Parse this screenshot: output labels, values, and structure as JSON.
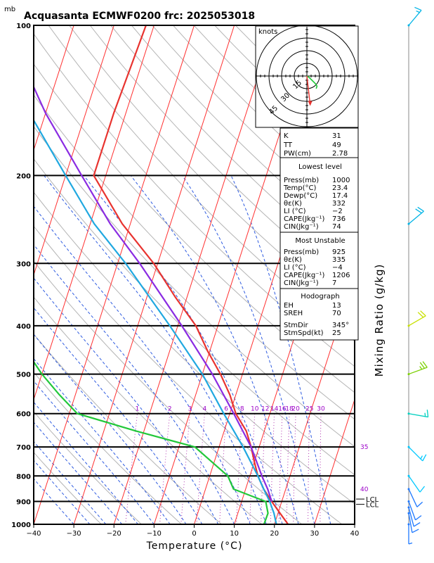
{
  "title": "Acquasanta ECMWF0200 frc: 2025053018",
  "y_unit": "mb",
  "x_label": "Temperature (°C)",
  "right_label": "Mixing Ratio (g/kg)",
  "hodograph": {
    "unit_label": "knots",
    "rings": [
      "15",
      "30",
      "45"
    ]
  },
  "indices": [
    {
      "label": "K",
      "value": "31"
    },
    {
      "label": "TT",
      "value": "49"
    },
    {
      "label": "PW(cm)",
      "value": "2.78"
    }
  ],
  "lowest_level": {
    "header": "Lowest level",
    "rows": [
      {
        "label": "Press(mb)",
        "value": "1000"
      },
      {
        "label": "Temp(°C)",
        "value": "23.4"
      },
      {
        "label": "Dewp(°C)",
        "value": "17.4"
      },
      {
        "label": "θε(K)",
        "value": "332"
      },
      {
        "label": "LI (°C)",
        "value": "−2"
      },
      {
        "label": "CAPE(Jkg⁻¹)",
        "value": "736"
      },
      {
        "label": "CIN(Jkg⁻¹)",
        "value": "74"
      }
    ]
  },
  "most_unstable": {
    "header": "Most Unstable",
    "rows": [
      {
        "label": "Press(mb)",
        "value": "925"
      },
      {
        "label": "θε(K)",
        "value": "335"
      },
      {
        "label": "LI (°C)",
        "value": "−4"
      },
      {
        "label": "CAPE(Jkg⁻¹)",
        "value": "1206"
      },
      {
        "label": "CIN(Jkg⁻¹)",
        "value": "7"
      }
    ]
  },
  "hodo_stats": {
    "header": "Hodograph",
    "rows": [
      {
        "label": "EH",
        "value": "13"
      },
      {
        "label": "SREH",
        "value": "70"
      },
      {
        "label": "StmDir",
        "value": "345°"
      },
      {
        "label": "StmSpd(kt)",
        "value": "25"
      }
    ]
  },
  "chart_data": {
    "type": "line",
    "subtype": "skew-T log-P diagram",
    "x_axis": {
      "label": "Temperature (°C)",
      "range": [
        -40,
        40
      ],
      "ticks": [
        -40,
        -30,
        -20,
        -10,
        0,
        10,
        20,
        30,
        40
      ]
    },
    "y_axis": {
      "label": "mb",
      "scale": "log",
      "range": [
        1000,
        100
      ],
      "ticks": [
        1000,
        900,
        800,
        700,
        600,
        500,
        400,
        300,
        200,
        100
      ]
    },
    "mixing_ratio_labels": [
      "1",
      "2",
      "3",
      "4",
      "6",
      "8",
      "10",
      "12",
      "14",
      "16",
      "18",
      "20",
      "25",
      "30"
    ],
    "isotherm_labels": [
      {
        "text": "35",
        "p": 700
      },
      {
        "text": "40",
        "p": 850
      }
    ],
    "lcl_labels": [
      {
        "text": "LCL",
        "p": 890
      },
      {
        "text": "LCL",
        "p": 912
      }
    ],
    "series": [
      {
        "key": "temperature",
        "color": "#e8332f",
        "points": [
          [
            1000,
            23.4
          ],
          [
            950,
            20.5
          ],
          [
            900,
            17.5
          ],
          [
            850,
            14.5
          ],
          [
            800,
            12
          ],
          [
            750,
            10
          ],
          [
            700,
            8
          ],
          [
            650,
            5.5
          ],
          [
            600,
            1.5
          ],
          [
            550,
            -1.5
          ],
          [
            500,
            -5.5
          ],
          [
            450,
            -10.5
          ],
          [
            400,
            -15.5
          ],
          [
            350,
            -23
          ],
          [
            300,
            -31
          ],
          [
            250,
            -42
          ],
          [
            200,
            -53
          ],
          [
            150,
            -53
          ],
          [
            100,
            -52
          ]
        ]
      },
      {
        "key": "dewpoint",
        "color": "#22c83a",
        "points": [
          [
            1000,
            17.4
          ],
          [
            950,
            17.5
          ],
          [
            900,
            16
          ],
          [
            850,
            7
          ],
          [
            800,
            4.5
          ],
          [
            700,
            -6
          ],
          [
            650,
            -22
          ],
          [
            600,
            -38
          ],
          [
            550,
            -44
          ],
          [
            500,
            -50
          ],
          [
            400,
            -62
          ],
          [
            300,
            -70
          ],
          [
            200,
            -77
          ],
          [
            100,
            -85
          ]
        ]
      },
      {
        "key": "parcel-most-unstable",
        "color": "#20a8e0",
        "points": [
          [
            1000,
            20.5
          ],
          [
            950,
            19
          ],
          [
            925,
            18
          ],
          [
            900,
            17
          ],
          [
            850,
            14.5
          ],
          [
            800,
            12
          ],
          [
            700,
            6
          ],
          [
            600,
            -1.5
          ],
          [
            500,
            -10
          ],
          [
            400,
            -22
          ],
          [
            300,
            -38
          ],
          [
            250,
            -49
          ],
          [
            200,
            -60
          ],
          [
            150,
            -74
          ],
          [
            110,
            -87
          ]
        ]
      },
      {
        "key": "parcel-lowest-level",
        "color": "#8a2be2",
        "points": [
          [
            900,
            17.5
          ],
          [
            850,
            15.5
          ],
          [
            800,
            13
          ],
          [
            700,
            8
          ],
          [
            600,
            1
          ],
          [
            500,
            -7.5
          ],
          [
            400,
            -19
          ],
          [
            300,
            -34.5
          ],
          [
            250,
            -45
          ],
          [
            200,
            -56
          ],
          [
            150,
            -70
          ],
          [
            110,
            -83
          ]
        ]
      }
    ],
    "wind_barbs": [
      {
        "p": 1000,
        "dir": 180,
        "kt": 5
      },
      {
        "p": 950,
        "dir": 190,
        "kt": 10
      },
      {
        "p": 925,
        "dir": 195,
        "kt": 10
      },
      {
        "p": 900,
        "dir": 200,
        "kt": 10
      },
      {
        "p": 850,
        "dir": 205,
        "kt": 10
      },
      {
        "p": 800,
        "dir": 215,
        "kt": 10
      },
      {
        "p": 700,
        "dir": 225,
        "kt": 15
      },
      {
        "p": 600,
        "dir": 260,
        "kt": 15
      },
      {
        "p": 500,
        "dir": 290,
        "kt": 25
      },
      {
        "p": 400,
        "dir": 300,
        "kt": 20
      },
      {
        "p": 250,
        "dir": 310,
        "kt": 20
      },
      {
        "p": 100,
        "dir": 320,
        "kt": 15
      }
    ],
    "hodograph_trace": [
      [
        0,
        0
      ],
      [
        3,
        -2
      ],
      [
        6,
        -5
      ],
      [
        10,
        -9
      ],
      [
        12,
        -12
      ],
      [
        11,
        -15
      ]
    ],
    "storm_motion": {
      "dir": 345,
      "kt": 25
    },
    "colors": {
      "isotherm": "#ff3030",
      "dry_adiabat": "#b4b4b4",
      "moist_adiabat": "#2e5be0",
      "mixing_ratio": "#b23ab2",
      "frame": "#000000"
    }
  }
}
